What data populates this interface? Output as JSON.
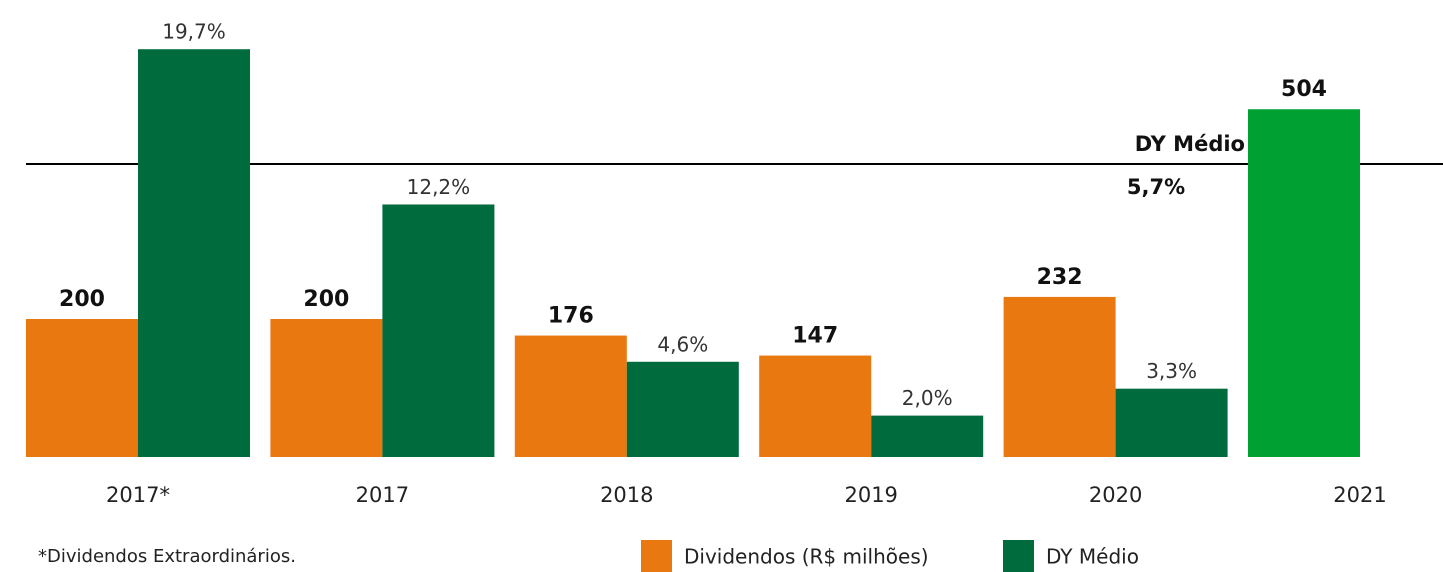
{
  "chart_data": {
    "type": "bar",
    "categories": [
      "2017*",
      "2017",
      "2018",
      "2019",
      "2020",
      "2021"
    ],
    "series": [
      {
        "name": "Dividendos (R$ milhões)",
        "color": "#e8780f",
        "values": [
          200,
          200,
          176,
          147,
          232,
          504
        ],
        "point_colors": [
          "#e8780f",
          "#e8780f",
          "#e8780f",
          "#e8780f",
          "#e8780f",
          "#00a032"
        ]
      },
      {
        "name": "DY Médio",
        "color": "#006b3c",
        "axis": "y2",
        "values": [
          19.7,
          12.2,
          4.6,
          2.0,
          3.3,
          null
        ],
        "value_labels": [
          "19,7%",
          "12,2%",
          "4,6%",
          "2,0%",
          "3,3%",
          null
        ]
      }
    ],
    "ylim": [
      0,
      600
    ],
    "y2lim": [
      0,
      20
    ],
    "annotations": [
      "DY Médio",
      "5,7%"
    ],
    "footnote": "*Dividendos Extraordinários."
  }
}
